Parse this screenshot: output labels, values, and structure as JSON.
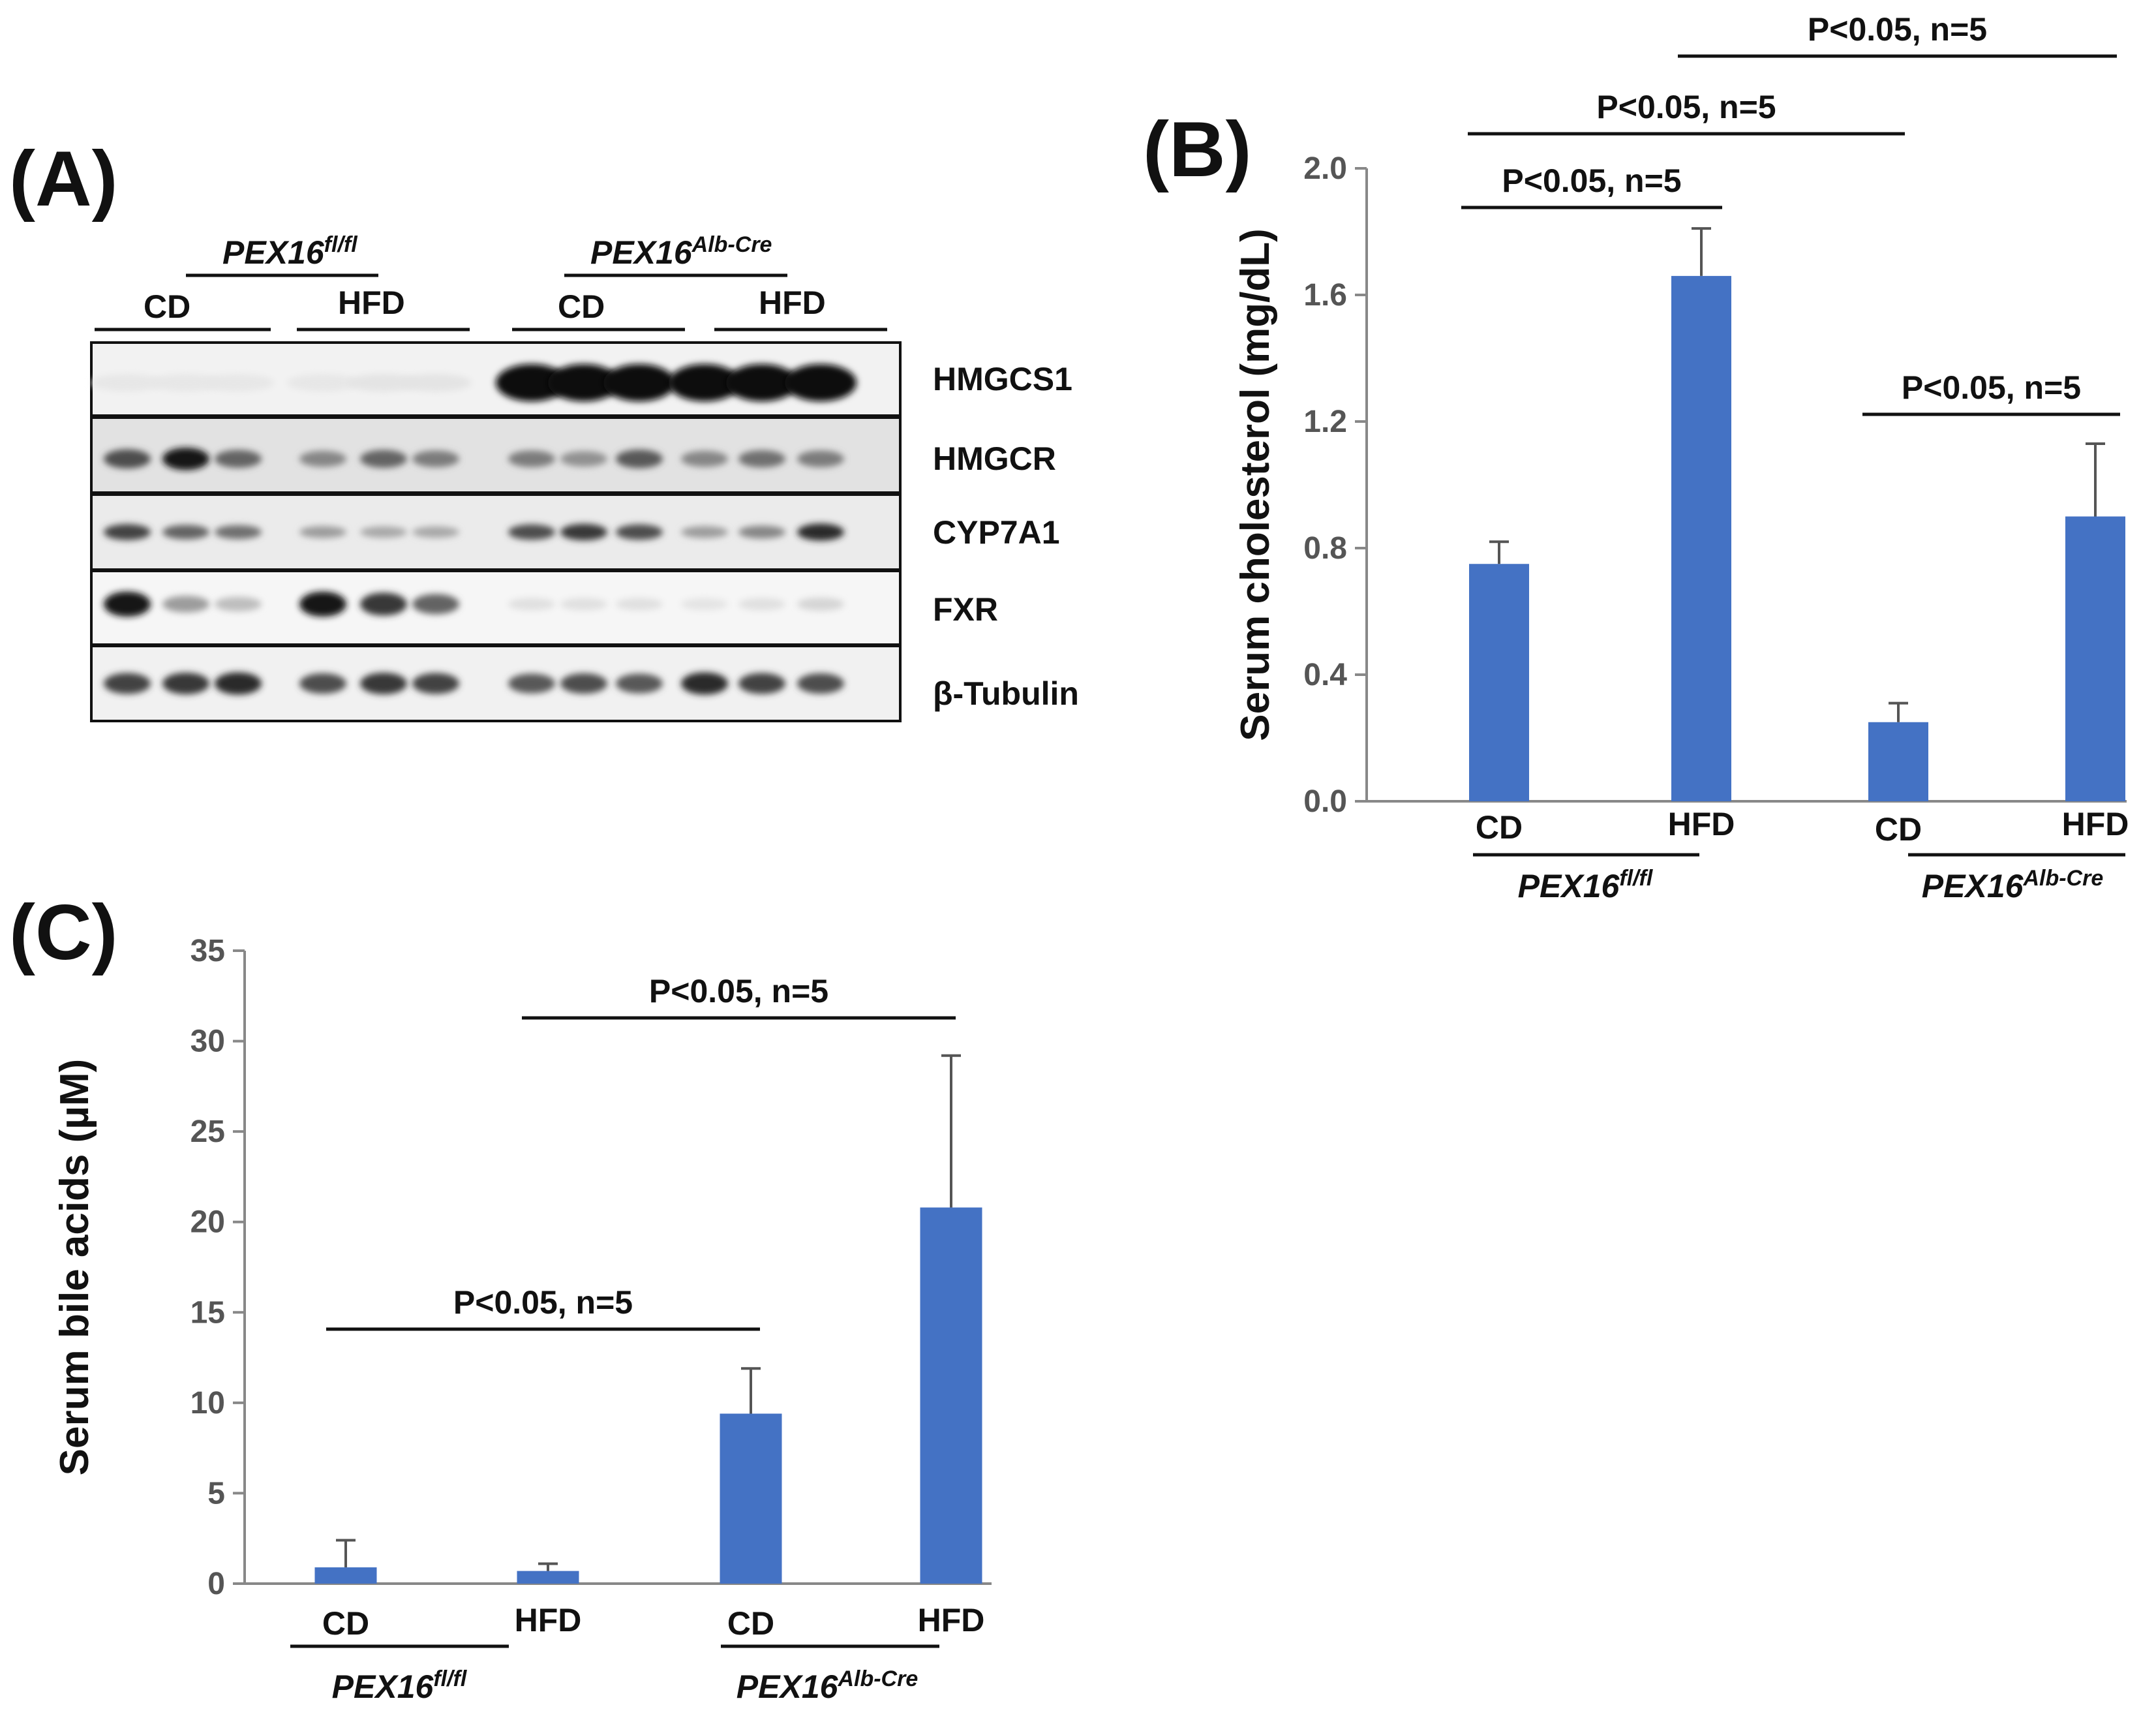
{
  "panels": {
    "a": "(A)",
    "b": "(B)",
    "c": "(C)"
  },
  "genotypes": {
    "flox": {
      "base": "PEX16",
      "sup": "fl/fl"
    },
    "alb": {
      "base": "PEX16",
      "sup": "Alb-Cre"
    }
  },
  "diets": {
    "cd": "CD",
    "hfd": "HFD"
  },
  "blot": {
    "rows": [
      {
        "label": "HMGCS1",
        "intensities": [
          0.02,
          0.02,
          0.02,
          0.02,
          0.03,
          0.03,
          1.0,
          1.0,
          1.0,
          1.0,
          1.0,
          1.0
        ]
      },
      {
        "label": "HMGCR",
        "intensities": [
          0.7,
          0.95,
          0.6,
          0.45,
          0.6,
          0.5,
          0.5,
          0.4,
          0.65,
          0.45,
          0.55,
          0.5
        ]
      },
      {
        "label": "CYP7A1",
        "intensities": [
          0.75,
          0.6,
          0.55,
          0.35,
          0.3,
          0.3,
          0.7,
          0.8,
          0.7,
          0.35,
          0.45,
          0.85
        ]
      },
      {
        "label": "FXR",
        "intensities": [
          0.95,
          0.35,
          0.2,
          0.95,
          0.8,
          0.6,
          0.05,
          0.05,
          0.05,
          0.03,
          0.05,
          0.1
        ]
      },
      {
        "label": "β-Tubulin",
        "intensities": [
          0.75,
          0.8,
          0.85,
          0.7,
          0.8,
          0.75,
          0.65,
          0.7,
          0.65,
          0.85,
          0.75,
          0.7
        ]
      }
    ]
  },
  "chart_data": [
    {
      "type": "bar",
      "panel": "B",
      "categories": [
        "CD",
        "HFD",
        "CD",
        "HFD"
      ],
      "groups": [
        "PEX16 fl/fl",
        "PEX16 Alb-Cre"
      ],
      "values": [
        0.75,
        1.66,
        0.25,
        0.9
      ],
      "errors": [
        0.07,
        0.15,
        0.06,
        0.23
      ],
      "ylabel": "Serum cholesterol (mg/dL)",
      "ylim": [
        0,
        2.0
      ],
      "yticks": [
        "0.0",
        "0.4",
        "0.8",
        "1.2",
        "1.6",
        "2.0"
      ],
      "bar_color": "#4472C4",
      "annotations": [
        "P<0.05, n=5",
        "P<0.05, n=5",
        "P<0.05, n=5",
        "P<0.05, n=5"
      ]
    },
    {
      "type": "bar",
      "panel": "C",
      "categories": [
        "CD",
        "HFD",
        "CD",
        "HFD"
      ],
      "groups": [
        "PEX16 fl/fl",
        "PEX16 Alb-Cre"
      ],
      "values": [
        0.9,
        0.7,
        9.4,
        20.8
      ],
      "errors": [
        1.5,
        0.4,
        2.5,
        8.4
      ],
      "ylabel": "Serum bile acids (µM)",
      "ylim": [
        0,
        35
      ],
      "yticks": [
        "0",
        "5",
        "10",
        "15",
        "20",
        "25",
        "30",
        "35"
      ],
      "bar_color": "#4472C4",
      "annotations": [
        "P<0.05, n=5",
        "P<0.05, n=5"
      ]
    }
  ]
}
